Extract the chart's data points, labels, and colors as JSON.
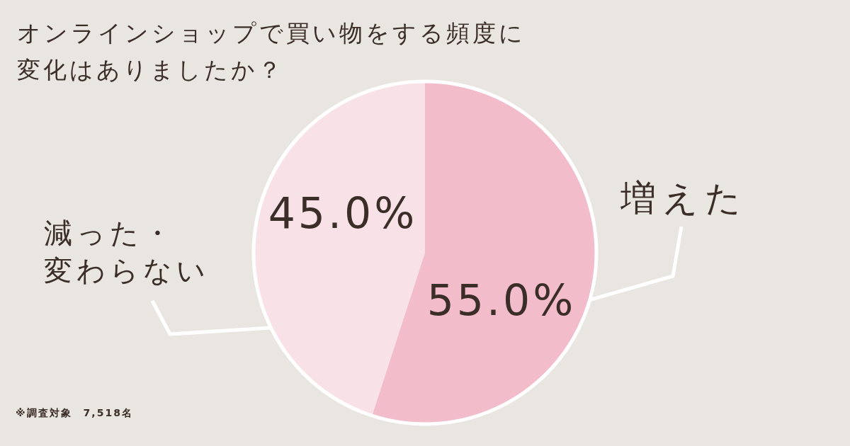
{
  "chart_data": {
    "type": "pie",
    "title": "オンラインショップで買い物をする頻度に変化はありましたか？",
    "categories": [
      "増えた",
      "減った・変わらない"
    ],
    "values": [
      55.0,
      45.0
    ],
    "colors": [
      "#f2bccb",
      "#f9e1e8"
    ],
    "value_labels": [
      "55.0%",
      "45.0%"
    ],
    "annotations": [
      "※調査対象　7,518名"
    ]
  }
}
